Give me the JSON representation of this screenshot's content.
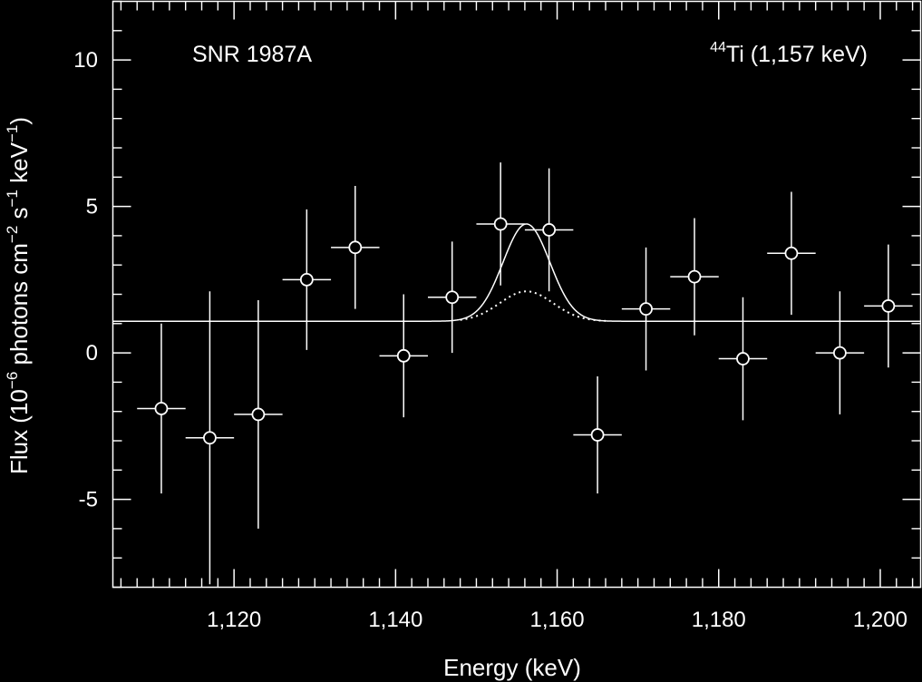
{
  "chart_data": {
    "type": "scatter",
    "title": "",
    "xlabel": "Energy (keV)",
    "ylabel": {
      "text_parts": [
        "Flux (10",
        "−6",
        " photons cm",
        "−2",
        " s",
        "−1",
        " keV",
        "−1",
        ")"
      ]
    },
    "xlim": [
      1105,
      1205
    ],
    "ylim": [
      -8,
      12
    ],
    "x_ticks": [
      1120,
      1140,
      1160,
      1180,
      1200
    ],
    "x_tick_labels": [
      "1,120",
      "1,140",
      "1,160",
      "1,180",
      "1,200"
    ],
    "y_ticks": [
      -5,
      0,
      5,
      10
    ],
    "y_tick_labels": [
      "-5",
      "0",
      "5",
      "10"
    ],
    "x_minor_step": 2,
    "y_minor_step": 1,
    "grid": false,
    "annotations": {
      "left": "SNR 1987A",
      "right_superscript": "44",
      "right_text": "Ti (1,157 keV)"
    },
    "bin_half_width": 3,
    "points": [
      {
        "x": 1111,
        "y": -1.9,
        "yerr": 2.9
      },
      {
        "x": 1117,
        "y": -2.9,
        "yerr": 5.0
      },
      {
        "x": 1123,
        "y": -2.1,
        "yerr": 3.9
      },
      {
        "x": 1129,
        "y": 2.5,
        "yerr": 2.4
      },
      {
        "x": 1135,
        "y": 3.6,
        "yerr": 2.1
      },
      {
        "x": 1141,
        "y": -0.1,
        "yerr": 2.1
      },
      {
        "x": 1147,
        "y": 1.9,
        "yerr": 1.9
      },
      {
        "x": 1153,
        "y": 4.4,
        "yerr": 2.1
      },
      {
        "x": 1159,
        "y": 4.2,
        "yerr": 2.1
      },
      {
        "x": 1165,
        "y": -2.8,
        "yerr": 2.0
      },
      {
        "x": 1171,
        "y": 1.5,
        "yerr": 2.1
      },
      {
        "x": 1177,
        "y": 2.6,
        "yerr": 2.0
      },
      {
        "x": 1183,
        "y": -0.2,
        "yerr": 2.1
      },
      {
        "x": 1189,
        "y": 3.4,
        "yerr": 2.1
      },
      {
        "x": 1195,
        "y": 0.0,
        "yerr": 2.1
      },
      {
        "x": 1201,
        "y": 1.6,
        "yerr": 2.1
      }
    ],
    "series": [
      {
        "name": "fit-solid",
        "style": "solid",
        "baseline": 1.08,
        "amplitude": 3.32,
        "center": 1156.2,
        "sigma": 2.9,
        "x_range": [
          1105,
          1205
        ]
      },
      {
        "name": "fit-dotted",
        "style": "dotted",
        "baseline": 1.08,
        "amplitude": 1.02,
        "center": 1156.2,
        "sigma": 3.3,
        "x_range": [
          1148,
          1166
        ]
      }
    ],
    "colors": {
      "background": "#000000",
      "foreground": "#ffffff"
    }
  }
}
